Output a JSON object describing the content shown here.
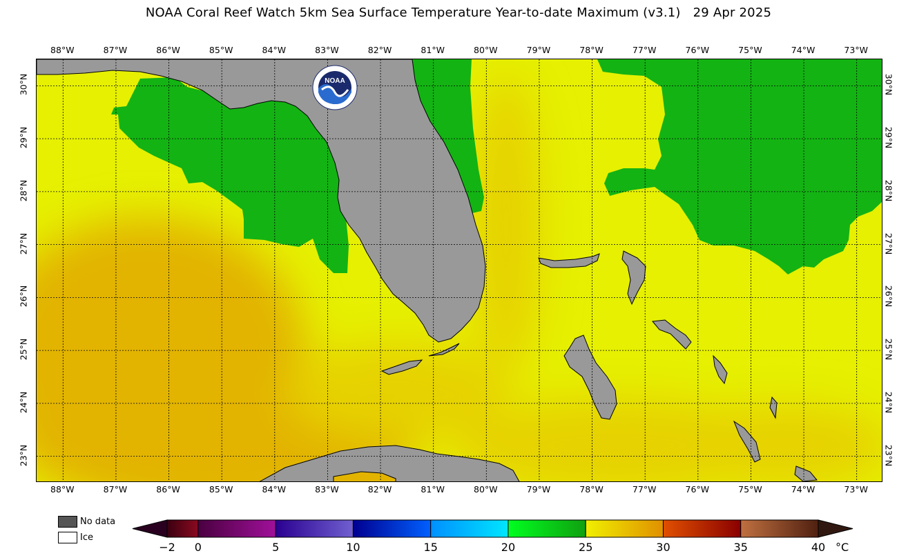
{
  "title": "NOAA Coral Reef Watch 5km Sea Surface Temperature Year-to-date Maximum  (v3.1)",
  "date": "29 Apr 2025",
  "map": {
    "lon_labels": [
      "88°W",
      "87°W",
      "86°W",
      "85°W",
      "84°W",
      "83°W",
      "82°W",
      "81°W",
      "80°W",
      "79°W",
      "78°W",
      "77°W",
      "76°W",
      "75°W",
      "74°W",
      "73°W"
    ],
    "lat_labels": [
      "30°N",
      "29°N",
      "28°N",
      "27°N",
      "26°N",
      "25°N",
      "24°N",
      "23°N"
    ],
    "lon_range": [
      -88.5,
      -72.5
    ],
    "lat_range": [
      22.5,
      30.5
    ],
    "logo": {
      "text": "NOAA",
      "icon": "noaa-logo-icon"
    },
    "colors": {
      "land": "#999999",
      "green": "#13b313",
      "yellow": "#e6f000",
      "yellow_orange": "#e6d200",
      "orange": "#e2b400"
    }
  },
  "legend": {
    "no_data_label": "No data",
    "no_data_color": "#555555",
    "ice_label": "Ice",
    "ice_color": "#ffffff"
  },
  "colorbar": {
    "ticks": [
      "−2",
      "0",
      "5",
      "10",
      "15",
      "20",
      "25",
      "30",
      "35",
      "40"
    ],
    "tick_values": [
      -2,
      0,
      5,
      10,
      15,
      20,
      25,
      30,
      35,
      40
    ],
    "unit": "°C",
    "segments": [
      {
        "from": -2,
        "to": 0,
        "colors": [
          "#3a0010",
          "#8a0a20"
        ]
      },
      {
        "from": 0,
        "to": 5,
        "colors": [
          "#4a0040",
          "#a0109a"
        ]
      },
      {
        "from": 5,
        "to": 10,
        "colors": [
          "#2a0090",
          "#7060d0"
        ]
      },
      {
        "from": 10,
        "to": 15,
        "colors": [
          "#000090",
          "#0060ff"
        ]
      },
      {
        "from": 15,
        "to": 20,
        "colors": [
          "#0090ff",
          "#00e6ff"
        ]
      },
      {
        "from": 20,
        "to": 25,
        "colors": [
          "#00ff20",
          "#10a010"
        ]
      },
      {
        "from": 25,
        "to": 30,
        "colors": [
          "#f0f000",
          "#e09000"
        ]
      },
      {
        "from": 30,
        "to": 35,
        "colors": [
          "#e05000",
          "#8a0000"
        ]
      },
      {
        "from": 35,
        "to": 40,
        "colors": [
          "#c07040",
          "#502010"
        ]
      }
    ],
    "under_color": "#2a0020",
    "over_color": "#301810"
  }
}
